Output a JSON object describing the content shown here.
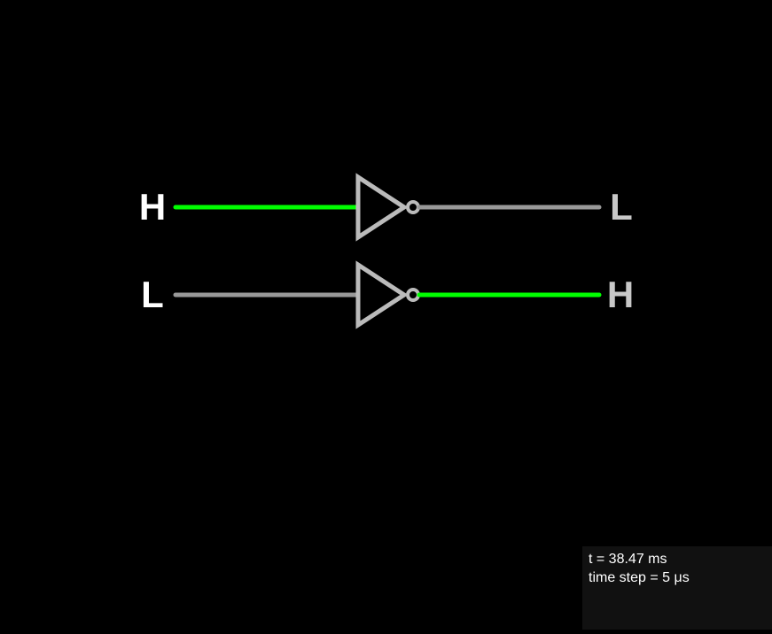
{
  "colors": {
    "background": "#000000",
    "high_wire": "#00ff00",
    "low_wire": "#999999",
    "gate": "#bbbbbb",
    "input_label": "#ffffff",
    "output_label": "#c8c8c8",
    "panel_bg": "#111111",
    "panel_text": "#ffffff"
  },
  "circuit": {
    "gates": [
      {
        "type": "not-gate",
        "input_state": "H",
        "output_state": "L",
        "input_label": "H",
        "output_label": "L"
      },
      {
        "type": "not-gate",
        "input_state": "L",
        "output_state": "H",
        "input_label": "L",
        "output_label": "H"
      }
    ]
  },
  "info": {
    "time": "t = 38.47 ms",
    "time_step": "time step = 5 μs"
  }
}
